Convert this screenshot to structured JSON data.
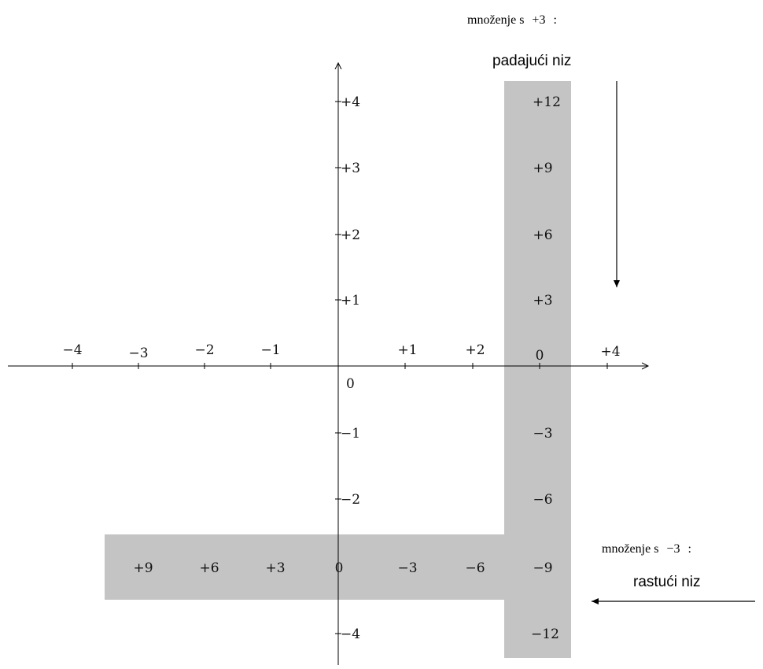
{
  "diagram": {
    "x_axis_labels": [
      "−4",
      "−3",
      "−2",
      "−1",
      "+1",
      "+2",
      "0",
      "+4"
    ],
    "y_axis_labels": [
      "+4",
      "+3",
      "+2",
      "+1",
      "0",
      "−1",
      "−2",
      "−4"
    ],
    "column_values": [
      "+12",
      "+9",
      "+6",
      "+3",
      "0",
      "−3",
      "−6",
      "−9",
      "−12"
    ],
    "row_values": [
      "+9",
      "+6",
      "+3",
      "0",
      "−3",
      "−6"
    ],
    "top_caption": {
      "text": "množenje s",
      "factor": "+3",
      "colon": ":",
      "subtitle": "padajući niz"
    },
    "bottom_caption": {
      "text": "množenje s",
      "factor": "−3",
      "colon": ":",
      "subtitle": "rastući niz"
    },
    "colors": {
      "band": "#c4c4c4",
      "axis": "#000000",
      "text": "#111111"
    }
  }
}
